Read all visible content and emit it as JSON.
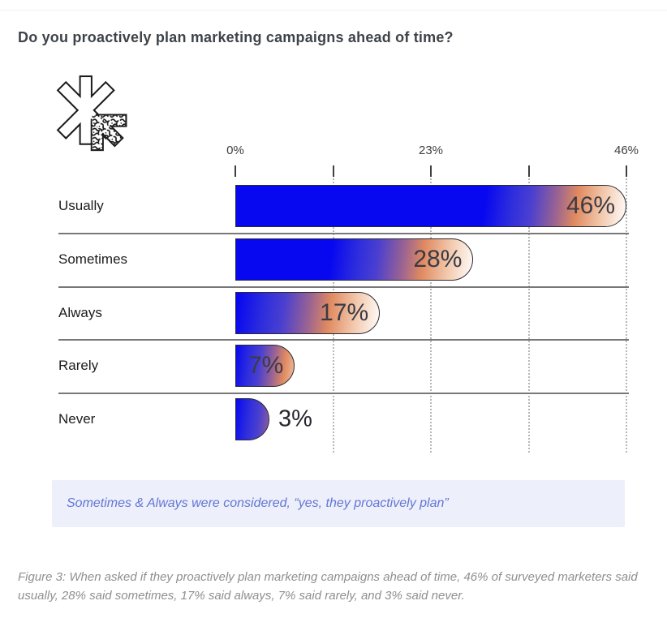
{
  "page": {
    "title": "Do you proactively plan marketing campaigns ahead of time?",
    "note": "Sometimes & Always were considered, “yes, they proactively plan”",
    "caption": "Figure 3: When asked if they proactively plan marketing campaigns ahead of time, 46% of surveyed marketers said usually, 28% said sometimes, 17% said always, 7% said rarely, and 3% said never."
  },
  "logo": {
    "name": "asterisk-scribble-logo",
    "outline_color": "#1c1c1c"
  },
  "chart_data": {
    "type": "bar",
    "orientation": "horizontal",
    "title": "Do you proactively plan marketing campaigns ahead of time?",
    "categories": [
      "Usually",
      "Sometimes",
      "Always",
      "Rarely",
      "Never"
    ],
    "values": [
      46,
      28,
      17,
      7,
      3
    ],
    "value_labels": [
      "46%",
      "28%",
      "17%",
      "7%",
      "3%"
    ],
    "xlabel": "",
    "ylabel": "",
    "xlim": [
      0,
      46
    ],
    "xticks": {
      "pcts": [
        0,
        23,
        46
      ],
      "labels": [
        "0%",
        "23%",
        "46%"
      ]
    },
    "minor_tick_pcts": [
      0,
      11.5,
      23,
      34.5,
      46
    ],
    "gridline_pcts": [
      11.5,
      23,
      34.5,
      46
    ],
    "grid": "dotted-vertical",
    "legend": "none",
    "bar_style": {
      "outline": "#2b2b33",
      "gradient_angle_deg": 97,
      "gradient_stops": [
        {
          "f": 0.0,
          "c": "#0808f0"
        },
        {
          "f": 0.18,
          "c": "#2d2ddd"
        },
        {
          "f": 0.32,
          "c": "#4a3fd0"
        },
        {
          "f": 0.5,
          "c": "#9a6392"
        },
        {
          "f": 0.64,
          "c": "#e08a60"
        },
        {
          "f": 0.82,
          "c": "#f2c9ad"
        },
        {
          "f": 1.0,
          "c": "#fffdfb"
        }
      ]
    }
  },
  "colors": {
    "title_text": "#3e4349",
    "category_text": "#1c1c1c",
    "axis_text": "#3f3f3f",
    "bar_value_text": "#3b3b45",
    "separator": "#787878",
    "gridline": "#b7b7b7",
    "note_background": "#edeffb",
    "note_text": "#6377d4",
    "caption_text": "#8f8f8f"
  }
}
